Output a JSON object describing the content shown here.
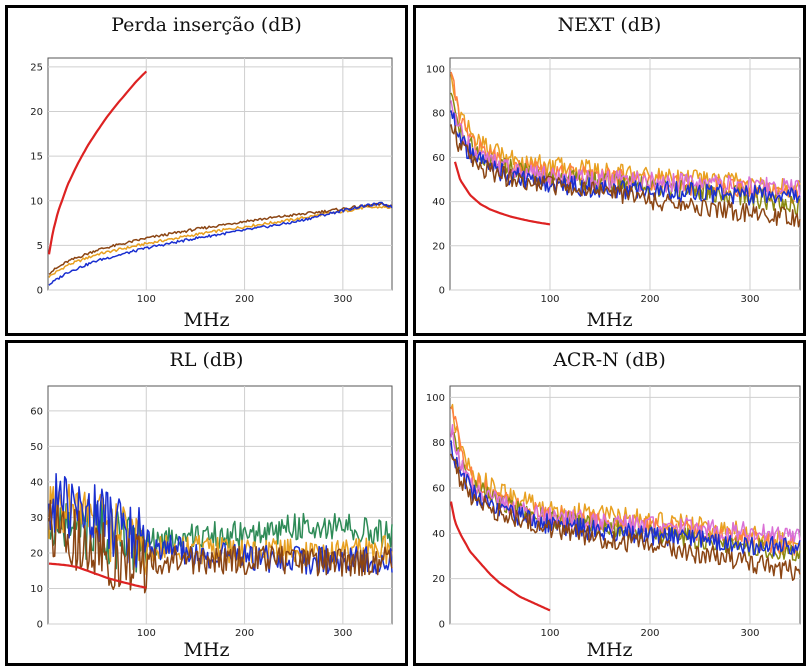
{
  "chart_data": [
    {
      "type": "line",
      "title": "Perda inserção (dB)",
      "xlabel": "MHz",
      "ylabel": "",
      "xlim": [
        0,
        350
      ],
      "ylim": [
        0,
        26
      ],
      "x_ticks": [
        "100",
        "200",
        "300"
      ],
      "y_ticks": [
        "0",
        "5",
        "10",
        "15",
        "20",
        "25"
      ],
      "y_tick_values": [
        0,
        5,
        10,
        15,
        20,
        25
      ],
      "x_tick_values": [
        100,
        200,
        300
      ],
      "grid": true,
      "series": [
        {
          "color": "#dd2222",
          "x": [
            1,
            5,
            10,
            20,
            30,
            40,
            50,
            60,
            70,
            80,
            90,
            100
          ],
          "y": [
            4.0,
            6.5,
            8.7,
            11.8,
            14.1,
            16.1,
            17.8,
            19.4,
            20.8,
            22.1,
            23.4,
            24.5
          ]
        },
        {
          "color": "#e8a020",
          "x": [
            1,
            20,
            50,
            100,
            150,
            200,
            250,
            280,
            300,
            320,
            340,
            350
          ],
          "y": [
            1.5,
            2.8,
            4.0,
            5.2,
            6.2,
            7.1,
            7.9,
            8.5,
            8.8,
            9.2,
            9.3,
            9.2
          ]
        },
        {
          "color": "#8b4513",
          "x": [
            1,
            20,
            50,
            100,
            150,
            200,
            250,
            280,
            300,
            320,
            340,
            350
          ],
          "y": [
            1.9,
            3.2,
            4.5,
            5.8,
            6.8,
            7.7,
            8.4,
            8.8,
            9.1,
            9.4,
            9.6,
            9.4
          ]
        },
        {
          "color": "#1a2fd0",
          "x": [
            1,
            20,
            50,
            100,
            150,
            200,
            250,
            280,
            300,
            320,
            340,
            350
          ],
          "y": [
            0.6,
            2.0,
            3.3,
            4.7,
            5.8,
            6.7,
            7.6,
            8.4,
            8.9,
            9.4,
            9.7,
            9.3
          ]
        }
      ]
    },
    {
      "type": "line",
      "title": "NEXT (dB)",
      "xlabel": "MHz",
      "ylabel": "",
      "xlim": [
        0,
        350
      ],
      "ylim": [
        0,
        105
      ],
      "x_ticks": [
        "100",
        "200",
        "300"
      ],
      "y_ticks": [
        "0",
        "20",
        "40",
        "60",
        "80",
        "100"
      ],
      "y_tick_values": [
        0,
        20,
        40,
        60,
        80,
        100
      ],
      "x_tick_values": [
        100,
        200,
        300
      ],
      "grid": true,
      "series": [
        {
          "color": "#dd2222",
          "x": [
            5,
            10,
            20,
            30,
            40,
            50,
            60,
            70,
            80,
            90,
            100
          ],
          "y": [
            58,
            50,
            43,
            39,
            36.5,
            34.8,
            33.3,
            32.2,
            31.2,
            30.4,
            29.7
          ]
        },
        {
          "color": "#e8a020",
          "x": [
            1,
            10,
            25,
            50,
            75,
            100,
            150,
            200,
            250,
            300,
            350
          ],
          "y": [
            98,
            80,
            68,
            61,
            58,
            56,
            54,
            52,
            50,
            48,
            45
          ]
        },
        {
          "color": "#ff8040",
          "x": [
            1,
            10,
            25,
            50,
            75,
            100,
            150,
            200,
            250,
            300,
            350
          ],
          "y": [
            100,
            78,
            65,
            58,
            55,
            53,
            51,
            49,
            47,
            45,
            43
          ]
        },
        {
          "color": "#8a8a10",
          "x": [
            1,
            10,
            25,
            50,
            75,
            100,
            150,
            200,
            250,
            300,
            350
          ],
          "y": [
            90,
            72,
            62,
            56,
            53,
            51,
            49,
            47,
            45,
            42,
            38
          ]
        },
        {
          "color": "#da70d6",
          "x": [
            1,
            10,
            25,
            50,
            75,
            100,
            150,
            200,
            250,
            300,
            350
          ],
          "y": [
            88,
            72,
            61,
            56,
            53,
            51,
            50,
            49,
            48,
            47,
            46
          ]
        },
        {
          "color": "#1a2fd0",
          "x": [
            1,
            10,
            25,
            50,
            75,
            100,
            150,
            200,
            250,
            300,
            350
          ],
          "y": [
            82,
            68,
            59,
            53,
            50,
            48,
            46,
            45,
            44,
            43,
            42
          ]
        },
        {
          "color": "#8b4513",
          "x": [
            1,
            10,
            25,
            50,
            75,
            100,
            150,
            200,
            250,
            300,
            350
          ],
          "y": [
            75,
            65,
            57,
            52,
            49,
            47,
            44,
            41,
            38,
            35,
            32
          ]
        }
      ]
    },
    {
      "type": "line",
      "title": "RL (dB)",
      "xlabel": "MHz",
      "ylabel": "",
      "xlim": [
        0,
        350
      ],
      "ylim": [
        0,
        67
      ],
      "x_ticks": [
        "100",
        "200",
        "300"
      ],
      "y_ticks": [
        "0",
        "10",
        "20",
        "30",
        "40",
        "50",
        "60"
      ],
      "y_tick_values": [
        0,
        10,
        20,
        30,
        40,
        50,
        60
      ],
      "x_tick_values": [
        100,
        200,
        300
      ],
      "grid": true,
      "series": [
        {
          "color": "#dd2222",
          "x": [
            1,
            10,
            20,
            30,
            40,
            50,
            60,
            70,
            80,
            90,
            100
          ],
          "y": [
            17,
            16.8,
            16.5,
            16,
            15,
            14,
            13,
            12.2,
            11.5,
            10.8,
            10.2
          ]
        },
        {
          "color": "#2e8b57",
          "x": [
            1,
            25,
            50,
            75,
            100,
            125,
            150,
            200,
            250,
            300,
            350
          ],
          "y": [
            30,
            28,
            26,
            24,
            23,
            24,
            25,
            25,
            27,
            28,
            25
          ]
        },
        {
          "color": "#e8a020",
          "x": [
            1,
            25,
            50,
            75,
            100,
            125,
            150,
            200,
            250,
            300,
            350
          ],
          "y": [
            32,
            30,
            28,
            25,
            22,
            21,
            21,
            20,
            20,
            20,
            21
          ]
        },
        {
          "color": "#1a2fd0",
          "x": [
            1,
            25,
            50,
            75,
            100,
            125,
            150,
            200,
            250,
            300,
            350
          ],
          "y": [
            35,
            32,
            30,
            27,
            23,
            21,
            20,
            19,
            18,
            18,
            18
          ]
        },
        {
          "color": "#8b4513",
          "x": [
            1,
            25,
            50,
            75,
            100,
            125,
            150,
            200,
            250,
            300,
            350
          ],
          "y": [
            26,
            24,
            20,
            18,
            17,
            18,
            18,
            18,
            18,
            17,
            18
          ]
        }
      ]
    },
    {
      "type": "line",
      "title": "ACR-N (dB)",
      "xlabel": "MHz",
      "ylabel": "",
      "xlim": [
        0,
        350
      ],
      "ylim": [
        0,
        105
      ],
      "x_ticks": [
        "100",
        "200",
        "300"
      ],
      "y_ticks": [
        "0",
        "20",
        "40",
        "60",
        "80",
        "100"
      ],
      "y_tick_values": [
        0,
        20,
        40,
        60,
        80,
        100
      ],
      "x_tick_values": [
        100,
        200,
        300
      ],
      "grid": true,
      "series": [
        {
          "color": "#dd2222",
          "x": [
            1,
            5,
            10,
            20,
            30,
            40,
            50,
            60,
            70,
            80,
            90,
            100
          ],
          "y": [
            54,
            45,
            40,
            32,
            27,
            22,
            18,
            15,
            12,
            10,
            8,
            6
          ]
        },
        {
          "color": "#e8a020",
          "x": [
            1,
            10,
            25,
            50,
            75,
            100,
            150,
            200,
            250,
            300,
            350
          ],
          "y": [
            96,
            78,
            66,
            58,
            54,
            51,
            48,
            46,
            43,
            40,
            36
          ]
        },
        {
          "color": "#ff8040",
          "x": [
            1,
            10,
            25,
            50,
            75,
            100,
            150,
            200,
            250,
            300,
            350
          ],
          "y": [
            100,
            76,
            63,
            55,
            51,
            48,
            45,
            43,
            40,
            37,
            34
          ]
        },
        {
          "color": "#8a8a10",
          "x": [
            1,
            10,
            25,
            50,
            75,
            100,
            150,
            200,
            250,
            300,
            350
          ],
          "y": [
            88,
            70,
            60,
            53,
            49,
            46,
            43,
            40,
            37,
            34,
            31
          ]
        },
        {
          "color": "#da70d6",
          "x": [
            1,
            10,
            25,
            50,
            75,
            100,
            150,
            200,
            250,
            300,
            350
          ],
          "y": [
            86,
            70,
            59,
            53,
            49,
            47,
            45,
            43,
            42,
            41,
            40
          ]
        },
        {
          "color": "#1a2fd0",
          "x": [
            1,
            10,
            25,
            50,
            75,
            100,
            150,
            200,
            250,
            300,
            350
          ],
          "y": [
            80,
            66,
            57,
            51,
            47,
            44,
            41,
            39,
            37,
            35,
            33
          ]
        },
        {
          "color": "#8b4513",
          "x": [
            1,
            10,
            25,
            50,
            75,
            100,
            150,
            200,
            250,
            300,
            350
          ],
          "y": [
            74,
            63,
            55,
            49,
            45,
            42,
            38,
            35,
            31,
            27,
            23
          ]
        }
      ]
    }
  ]
}
